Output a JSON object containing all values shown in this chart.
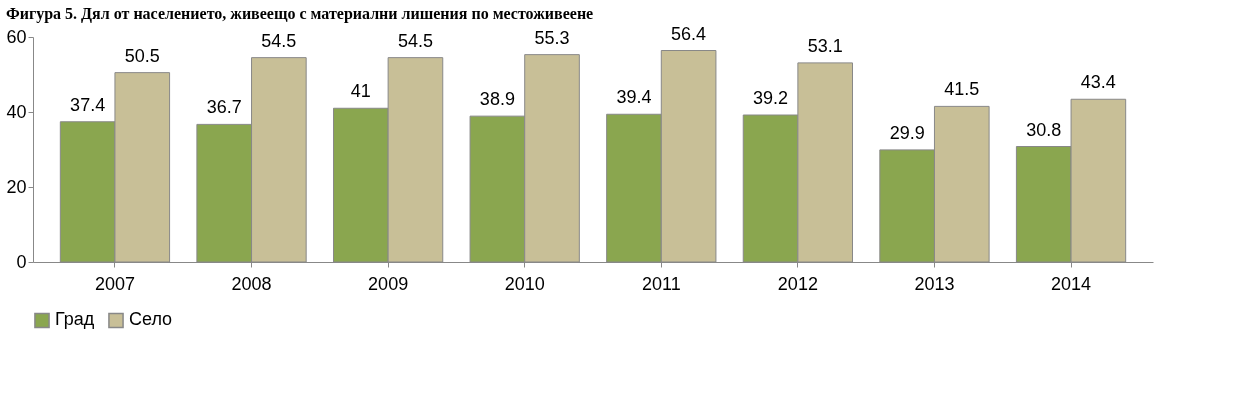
{
  "chart_data": {
    "type": "bar",
    "title": "Фигура 5. Дял от населението, живеещо с материални лишения по местоживеене",
    "categories": [
      "2007",
      "2008",
      "2009",
      "2010",
      "2011",
      "2012",
      "2013",
      "2014"
    ],
    "series": [
      {
        "name": "Град",
        "color": "#8aa64f",
        "values": [
          37.4,
          36.7,
          41,
          38.9,
          39.4,
          39.2,
          29.9,
          30.8
        ]
      },
      {
        "name": "Село",
        "color": "#c8bf97",
        "values": [
          50.5,
          54.5,
          54.5,
          55.3,
          56.4,
          53.1,
          41.5,
          43.4
        ]
      }
    ],
    "ylim": [
      0,
      60
    ],
    "yticks": [
      0,
      20,
      40,
      60
    ],
    "grid": false,
    "legend": "bottom",
    "data_labels": true
  }
}
